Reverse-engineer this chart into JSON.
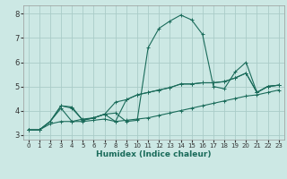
{
  "xlabel": "Humidex (Indice chaleur)",
  "xlim": [
    -0.5,
    23.5
  ],
  "ylim": [
    2.8,
    8.35
  ],
  "yticks": [
    3,
    4,
    5,
    6,
    7,
    8
  ],
  "xticks": [
    0,
    1,
    2,
    3,
    4,
    5,
    6,
    7,
    8,
    9,
    10,
    11,
    12,
    13,
    14,
    15,
    16,
    17,
    18,
    19,
    20,
    21,
    22,
    23
  ],
  "bg_color": "#cce8e4",
  "grid_color": "#aaccc8",
  "line_color": "#1a6b5a",
  "lines": [
    [
      3.2,
      3.2,
      3.55,
      4.2,
      4.15,
      3.6,
      3.7,
      3.85,
      3.9,
      3.55,
      3.6,
      6.6,
      7.4,
      7.7,
      7.95,
      7.75,
      7.15,
      5.0,
      4.9,
      5.6,
      6.0,
      4.75,
      5.0,
      5.05
    ],
    [
      3.2,
      3.2,
      3.55,
      4.1,
      3.55,
      3.65,
      3.7,
      3.85,
      4.35,
      4.45,
      4.65,
      4.75,
      4.85,
      4.95,
      5.1,
      5.1,
      5.15,
      5.15,
      5.2,
      5.35,
      5.55,
      4.75,
      5.0,
      5.05
    ],
    [
      3.2,
      3.2,
      3.55,
      4.2,
      4.1,
      3.6,
      3.7,
      3.85,
      3.55,
      4.45,
      4.65,
      4.75,
      4.85,
      4.95,
      5.1,
      5.1,
      5.15,
      5.15,
      5.2,
      5.35,
      5.55,
      4.75,
      5.0,
      5.05
    ],
    [
      3.2,
      3.2,
      3.45,
      3.55,
      3.55,
      3.55,
      3.6,
      3.65,
      3.55,
      3.6,
      3.65,
      3.7,
      3.8,
      3.9,
      4.0,
      4.1,
      4.2,
      4.3,
      4.4,
      4.5,
      4.6,
      4.65,
      4.75,
      4.85
    ]
  ]
}
